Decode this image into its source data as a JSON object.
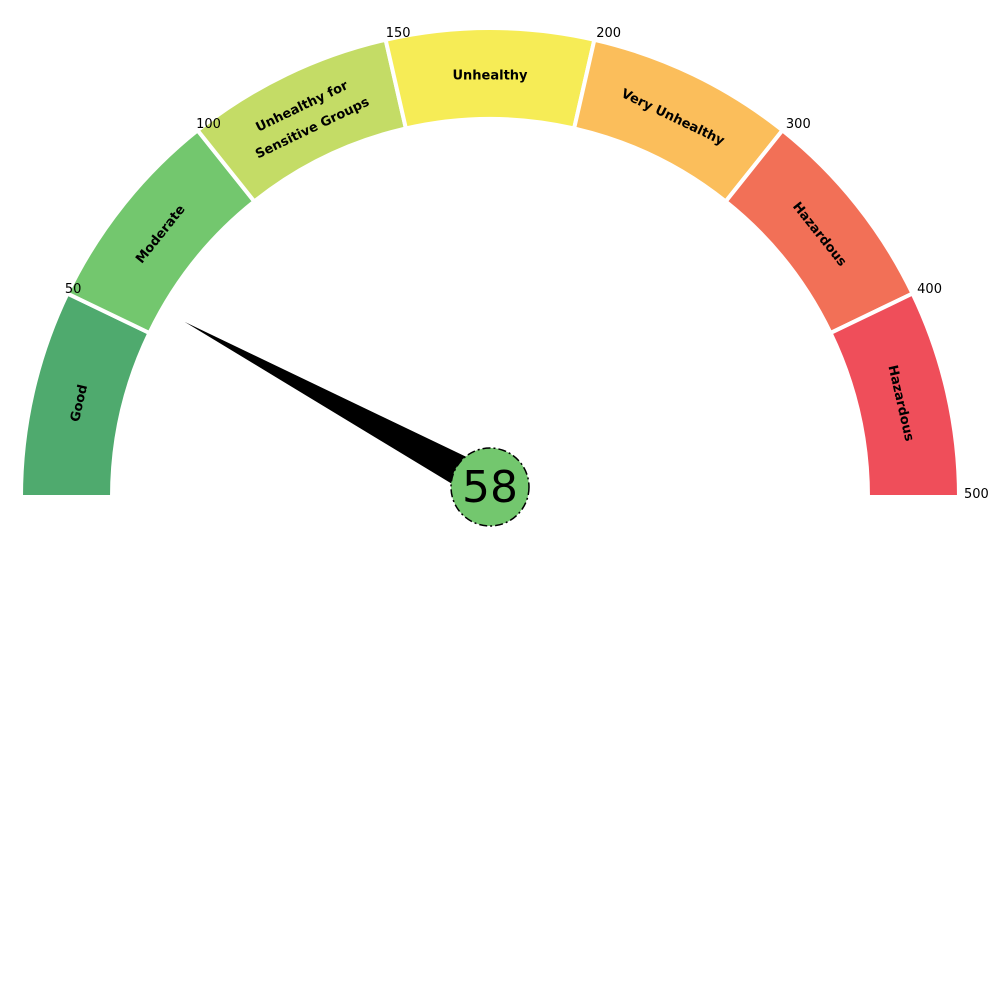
{
  "chart_data": {
    "type": "gauge",
    "value": 58,
    "value_label": "58",
    "ticks": [
      "50",
      "100",
      "150",
      "200",
      "300",
      "400",
      "500"
    ],
    "segments": [
      {
        "label": [
          "Good"
        ],
        "color": "#4FAA6E"
      },
      {
        "label": [
          "Moderate"
        ],
        "color": "#73C76E"
      },
      {
        "label": [
          "Unhealthy for",
          "Sensitive Groups"
        ],
        "color": "#C4DC66"
      },
      {
        "label": [
          "Unhealthy"
        ],
        "color": "#F6EC56"
      },
      {
        "label": [
          "Very Unhealthy"
        ],
        "color": "#FBBE5B"
      },
      {
        "label": [
          "Hazardous"
        ],
        "color": "#F27057"
      },
      {
        "label": [
          "Hazardous"
        ],
        "color": "#EF4E5A"
      }
    ],
    "needle_color": "#000000",
    "center_color": "#73C76E"
  }
}
